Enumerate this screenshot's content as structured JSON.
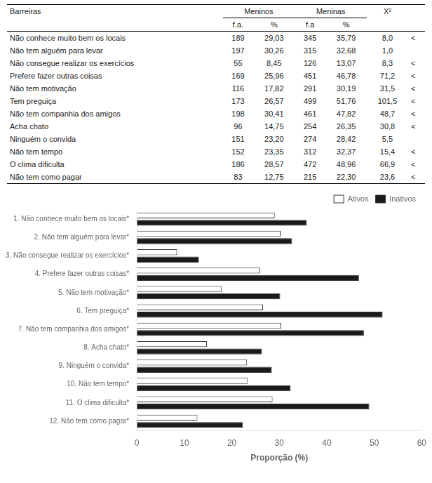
{
  "chart_data": [
    {
      "type": "table",
      "row_header": "Barreiras",
      "categories": [
        "Não conhece muito bem os locais",
        "Não tem alguém para levar",
        "Não consegue realizar os exercícios",
        "Prefere fazer outras coisas",
        "Não tem motivação",
        "Tem preguiça",
        "Não tem companhia dos amigos",
        "Acha chato",
        "Ninguém o convida",
        "Não tem tempo",
        "O clima dificulta",
        "Não tem como pagar"
      ],
      "series": [
        {
          "group": "Meninos",
          "name": "f.a.",
          "values": [
            189,
            197,
            55,
            169,
            116,
            173,
            198,
            96,
            151,
            152,
            186,
            83
          ]
        },
        {
          "group": "Meninos",
          "name": "%",
          "values": [
            29.03,
            30.26,
            8.45,
            25.96,
            17.82,
            26.57,
            30.41,
            14.75,
            23.2,
            23.35,
            28.57,
            12.75
          ],
          "value_labels": [
            "29,03",
            "30,26",
            "8,45",
            "25,96",
            "17,82",
            "26,57",
            "30,41",
            "14,75",
            "23,20",
            "23,35",
            "28,57",
            "12,75"
          ]
        },
        {
          "group": "Meninas",
          "name": "f.a",
          "values": [
            345,
            315,
            126,
            451,
            291,
            499,
            461,
            254,
            274,
            312,
            472,
            215
          ]
        },
        {
          "group": "Meninas",
          "name": "%",
          "values": [
            35.79,
            32.68,
            13.07,
            46.78,
            30.19,
            51.76,
            47.82,
            26.35,
            28.42,
            32.37,
            48.96,
            22.3
          ],
          "value_labels": [
            "35,79",
            "32,68",
            "13,07",
            "46,78",
            "30,19",
            "51,76",
            "47,82",
            "26,35",
            "28,42",
            "32,37",
            "48,96",
            "22,30"
          ]
        },
        {
          "name": "X²",
          "values": [
            8.0,
            1.0,
            8.3,
            71.2,
            31.5,
            101.5,
            48.7,
            30.8,
            5.5,
            15.4,
            66.9,
            23.6
          ],
          "value_labels": [
            "8,0",
            "1,0",
            "8,3",
            "71,2",
            "31,5",
            "101,5",
            "48,7",
            "30,8",
            "5,5",
            "15,4",
            "66,9",
            "23,6"
          ]
        },
        {
          "value_labels": [
            "<",
            null,
            "<",
            "<",
            "<",
            "<",
            "<",
            "<",
            null,
            "<",
            "<",
            "<"
          ]
        }
      ]
    },
    {
      "type": "bar",
      "orientation": "horizontal",
      "categories": [
        "1. Não conhece muito bem os locais*",
        "2. Não tem alguém para levar*",
        "3. Não consegue realizar os exercícios*",
        "4. Prefere fazer outras coisas*",
        "5. Não tem motivação*",
        "6. Tem preguiça*",
        "7. Não tem companhia dos amigos*",
        "8. Acha chato*",
        "9. Ninguém o convida*",
        "10. Não tem tempo*",
        "11. O clima dificulta*",
        "12. Não tem como pagar*"
      ],
      "series": [
        {
          "name": "Ativos",
          "color": "#ffffff",
          "values": [
            29.03,
            30.26,
            8.45,
            25.96,
            17.82,
            26.57,
            30.41,
            14.75,
            23.2,
            23.35,
            28.57,
            12.75
          ]
        },
        {
          "name": "Inativos",
          "color": "#1a1a1a",
          "values": [
            35.79,
            32.68,
            13.07,
            46.78,
            30.19,
            51.76,
            47.82,
            26.35,
            28.42,
            32.37,
            48.96,
            22.3
          ]
        }
      ],
      "xlabel": "Proporção (%)",
      "xlim": [
        0,
        60
      ],
      "xticks": [
        0,
        10,
        20,
        30,
        40,
        50,
        60
      ],
      "grid": false,
      "legend": "upper right"
    }
  ]
}
